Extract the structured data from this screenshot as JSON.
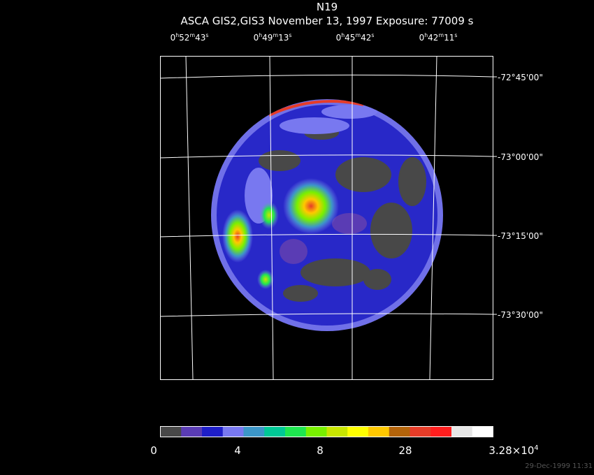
{
  "header": {
    "title": "N19",
    "subtitle": "ASCA GIS2,GIS3 November 13, 1997 Exposure: 77009 s"
  },
  "ra_labels": [
    [
      "0",
      "h",
      "52",
      "m",
      "43",
      "s"
    ],
    [
      "0",
      "h",
      "49",
      "m",
      "13",
      "s"
    ],
    [
      "0",
      "h",
      "45",
      "m",
      "42",
      "s"
    ],
    [
      "0",
      "h",
      "42",
      "m",
      "11",
      "s"
    ]
  ],
  "dec_labels": [
    "-72°45'00\"",
    "-73°00'00\"",
    "-73°15'00\"",
    "-73°30'00\""
  ],
  "colorbar": {
    "colors": [
      "#484848",
      "#5a3cb4",
      "#1e1ec8",
      "#7878f0",
      "#3c96c8",
      "#00c896",
      "#1ee650",
      "#78f000",
      "#c8e600",
      "#ffff00",
      "#ffc800",
      "#b4640a",
      "#e63c28",
      "#ff1e1e",
      "#e6e6e6",
      "#ffffff"
    ],
    "labels": [
      [
        "0"
      ],
      [
        "4"
      ],
      [
        "8"
      ],
      [
        "28"
      ],
      [
        "3.28×10",
        "4"
      ]
    ]
  },
  "footer": {
    "timestamp": "29-Dec-1999 11:31"
  }
}
